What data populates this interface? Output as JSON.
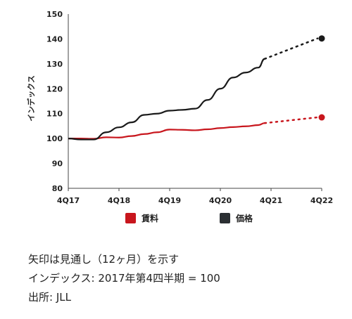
{
  "chart_data": {
    "type": "line",
    "ylabel": "インデックス",
    "xlabel": "",
    "ylim": [
      80,
      150
    ],
    "yticks": [
      80,
      90,
      100,
      110,
      120,
      130,
      140,
      150
    ],
    "categories": [
      "4Q17",
      "4Q18",
      "4Q19",
      "4Q20",
      "4Q21",
      "4Q22"
    ],
    "series": [
      {
        "name": "賃料",
        "color": "#c8161d",
        "x": [
          0,
          0.25,
          0.5,
          0.75,
          1.0,
          1.25,
          1.5,
          1.75,
          2.0,
          2.25,
          2.5,
          2.75,
          3.0,
          3.25,
          3.5,
          3.75,
          3.875
        ],
        "values": [
          100,
          100,
          99.9,
          100.5,
          100.4,
          101.0,
          101.8,
          102.5,
          103.6,
          103.5,
          103.3,
          103.7,
          104.2,
          104.6,
          104.9,
          105.4,
          106.2
        ],
        "forecast": {
          "x": [
            3.875,
            5.0
          ],
          "values": [
            106.2,
            108.5
          ]
        }
      },
      {
        "name": "価格",
        "color": "#1a1a1a",
        "x": [
          0,
          0.25,
          0.5,
          0.75,
          1.0,
          1.25,
          1.5,
          1.75,
          2.0,
          2.25,
          2.5,
          2.75,
          3.0,
          3.25,
          3.5,
          3.75,
          3.875
        ],
        "values": [
          100,
          99.6,
          99.6,
          102.5,
          104.5,
          106.5,
          109.5,
          110.0,
          111.2,
          111.5,
          112.0,
          115.5,
          120.0,
          124.5,
          126.5,
          128.5,
          132.0
        ],
        "forecast": {
          "x": [
            3.875,
            5.0
          ],
          "values": [
            132.0,
            140.2
          ]
        }
      }
    ],
    "legend": [
      {
        "label": "賃料",
        "color": "#c8161d"
      },
      {
        "label": "価格",
        "color": "#2b2f33"
      }
    ],
    "legend_position": "bottom",
    "grid": false
  },
  "notes": {
    "line1": "矢印は見通し（12ヶ月）を示す",
    "line2": "インデックス: 2017年第4四半期 = 100",
    "line3": "出所: JLL"
  }
}
